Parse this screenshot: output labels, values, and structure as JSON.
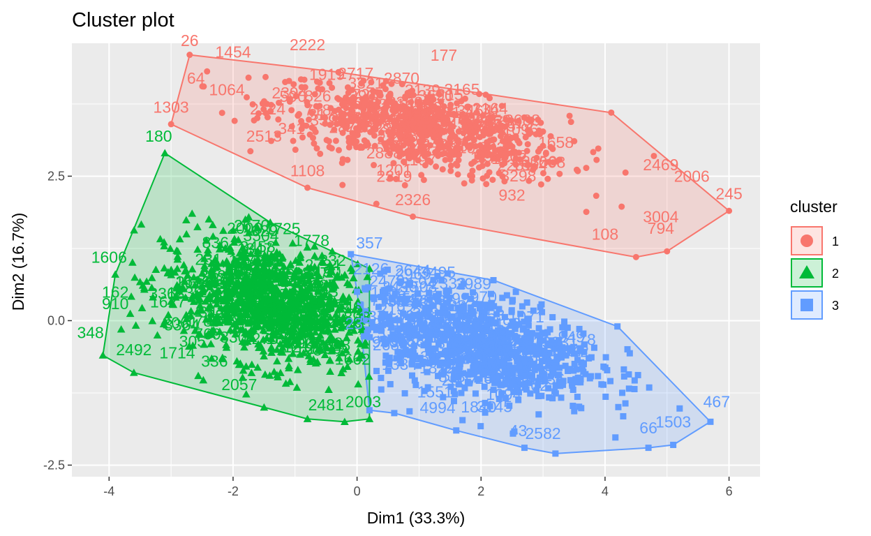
{
  "chart_data": {
    "type": "scatter",
    "title": "Cluster plot",
    "xlabel": "Dim1 (33.3%)",
    "ylabel": "Dim2 (16.7%)",
    "xlim": [
      -4.6,
      6.5
    ],
    "ylim": [
      -2.7,
      4.8
    ],
    "x_ticks": [
      -4,
      -2,
      0,
      2,
      4,
      6
    ],
    "x_tick_labels": [
      "-4",
      "-2",
      "0",
      "2",
      "4",
      "6"
    ],
    "y_ticks": [
      -2.5,
      0.0,
      2.5
    ],
    "y_tick_labels": [
      "-2.5",
      "0.0",
      "2.5"
    ],
    "grid": true,
    "legend": {
      "title": "cluster",
      "position": "right",
      "entries": [
        {
          "label": "1",
          "color": "#F8766D",
          "shape": "circle"
        },
        {
          "label": "2",
          "color": "#00BA38",
          "shape": "triangle"
        },
        {
          "label": "3",
          "color": "#619CFF",
          "shape": "square"
        }
      ]
    },
    "clusters": [
      {
        "name": "1",
        "color": "#F8766D",
        "shape": "circle",
        "hull": [
          [
            -2.7,
            4.6
          ],
          [
            -0.3,
            4.3
          ],
          [
            4.1,
            3.6
          ],
          [
            6.0,
            1.9
          ],
          [
            5.0,
            1.2
          ],
          [
            4.5,
            1.1
          ],
          [
            0.9,
            1.8
          ],
          [
            -0.8,
            2.3
          ],
          [
            -3.0,
            3.4
          ]
        ],
        "center": [
          1.0,
          3.3
        ],
        "spread": [
          1.2,
          0.42
        ],
        "corr": -0.55,
        "n_points": 700,
        "labels": [
          {
            "text": "26",
            "x": -2.7,
            "y": 4.75
          },
          {
            "text": "1454",
            "x": -2.0,
            "y": 4.55
          },
          {
            "text": "2222",
            "x": -0.8,
            "y": 4.68
          },
          {
            "text": "177",
            "x": 1.4,
            "y": 4.5
          },
          {
            "text": "64",
            "x": -2.6,
            "y": 4.1
          },
          {
            "text": "1064",
            "x": -2.1,
            "y": 3.9
          },
          {
            "text": "1303",
            "x": -3.0,
            "y": 3.6
          },
          {
            "text": "2513",
            "x": -1.5,
            "y": 3.1
          },
          {
            "text": "1108",
            "x": -0.8,
            "y": 2.5
          },
          {
            "text": "2319",
            "x": 0.6,
            "y": 2.4
          },
          {
            "text": "2326",
            "x": 0.9,
            "y": 2.0
          },
          {
            "text": "2469",
            "x": 4.9,
            "y": 2.6
          },
          {
            "text": "2006",
            "x": 5.4,
            "y": 2.4
          },
          {
            "text": "245",
            "x": 6.0,
            "y": 2.1
          },
          {
            "text": "3004",
            "x": 4.9,
            "y": 1.7
          },
          {
            "text": "108",
            "x": 4.0,
            "y": 1.4
          },
          {
            "text": "794",
            "x": 4.9,
            "y": 1.5
          }
        ]
      },
      {
        "name": "2",
        "color": "#00BA38",
        "shape": "triangle",
        "hull": [
          [
            -3.1,
            2.9
          ],
          [
            -1.4,
            1.7
          ],
          [
            -0.4,
            1.2
          ],
          [
            0.2,
            0.9
          ],
          [
            0.2,
            -1.7
          ],
          [
            -0.2,
            -1.75
          ],
          [
            -0.8,
            -1.7
          ],
          [
            -1.5,
            -1.5
          ],
          [
            -3.6,
            -0.9
          ],
          [
            -4.1,
            -0.6
          ],
          [
            -3.9,
            0.8
          ]
        ],
        "center": [
          -1.4,
          0.3
        ],
        "spread": [
          0.85,
          0.55
        ],
        "corr": -0.3,
        "n_points": 900,
        "labels": [
          {
            "text": "180",
            "x": -3.2,
            "y": 3.1
          },
          {
            "text": "2670",
            "x": -1.7,
            "y": 1.55
          },
          {
            "text": "1606",
            "x": -4.0,
            "y": 1.0
          },
          {
            "text": "162",
            "x": -3.9,
            "y": 0.4
          },
          {
            "text": "910",
            "x": -3.9,
            "y": 0.2
          },
          {
            "text": "348",
            "x": -4.3,
            "y": -0.3
          },
          {
            "text": "2492",
            "x": -3.6,
            "y": -0.6
          },
          {
            "text": "1714",
            "x": -2.9,
            "y": -0.65
          },
          {
            "text": "336",
            "x": -2.3,
            "y": -0.8
          },
          {
            "text": "2057",
            "x": -1.9,
            "y": -1.2
          },
          {
            "text": "2481",
            "x": -0.5,
            "y": -1.55
          },
          {
            "text": "2003",
            "x": 0.1,
            "y": -1.5
          }
        ]
      },
      {
        "name": "3",
        "color": "#619CFF",
        "shape": "square",
        "hull": [
          [
            -0.1,
            1.15
          ],
          [
            2.2,
            0.7
          ],
          [
            4.2,
            -0.1
          ],
          [
            5.7,
            -1.75
          ],
          [
            5.1,
            -2.15
          ],
          [
            4.7,
            -2.2
          ],
          [
            3.2,
            -2.3
          ],
          [
            2.7,
            -2.2
          ],
          [
            1.6,
            -1.9
          ],
          [
            0.6,
            -1.6
          ],
          [
            0.2,
            -1.55
          ],
          [
            0.0,
            0.5
          ]
        ],
        "center": [
          1.9,
          -0.4
        ],
        "spread": [
          1.0,
          0.5
        ],
        "corr": -0.4,
        "n_points": 800,
        "labels": [
          {
            "text": "357",
            "x": 0.2,
            "y": 1.25
          },
          {
            "text": "467",
            "x": 5.8,
            "y": -1.5
          },
          {
            "text": "66",
            "x": 4.7,
            "y": -1.95
          },
          {
            "text": "1503",
            "x": 5.1,
            "y": -1.85
          },
          {
            "text": "43",
            "x": 2.6,
            "y": -2.0
          },
          {
            "text": "2582",
            "x": 3.0,
            "y": -2.05
          },
          {
            "text": "4994",
            "x": 1.3,
            "y": -1.6
          }
        ]
      }
    ]
  }
}
